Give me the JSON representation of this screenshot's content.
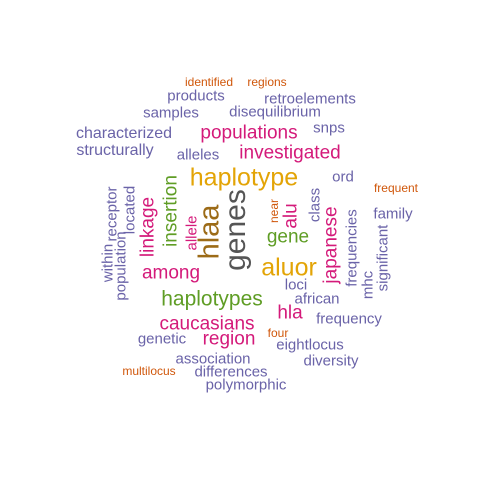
{
  "palette": {
    "purple": "#6a63a8",
    "magenta": "#d41a7a",
    "green": "#5f9d25",
    "gold": "#e3a406",
    "orange": "#d0570b",
    "gray": "#555555",
    "brown": "#9c6b17"
  },
  "words": [
    {
      "id": "identified",
      "text": "identified",
      "color": "orange"
    },
    {
      "id": "regions",
      "text": "regions",
      "color": "orange"
    },
    {
      "id": "products",
      "text": "products",
      "color": "purple"
    },
    {
      "id": "retroelements",
      "text": "retroelements",
      "color": "purple"
    },
    {
      "id": "samples",
      "text": "samples",
      "color": "purple"
    },
    {
      "id": "disequilibrium",
      "text": "disequilibrium",
      "color": "purple"
    },
    {
      "id": "snps",
      "text": "snps",
      "color": "purple"
    },
    {
      "id": "characterized",
      "text": "characterized",
      "color": "purple"
    },
    {
      "id": "populations",
      "text": "populations",
      "color": "magenta"
    },
    {
      "id": "structurally",
      "text": "structurally",
      "color": "purple"
    },
    {
      "id": "alleles",
      "text": "alleles",
      "color": "purple"
    },
    {
      "id": "investigated",
      "text": "investigated",
      "color": "magenta"
    },
    {
      "id": "haplotype",
      "text": "haplotype",
      "color": "gold"
    },
    {
      "id": "ord",
      "text": "ord",
      "color": "purple"
    },
    {
      "id": "frequent",
      "text": "frequent",
      "color": "orange"
    },
    {
      "id": "receptor",
      "text": "receptor",
      "color": "purple"
    },
    {
      "id": "located",
      "text": "located",
      "color": "purple"
    },
    {
      "id": "linkage",
      "text": "linkage",
      "color": "magenta"
    },
    {
      "id": "insertion",
      "text": "insertion",
      "color": "green"
    },
    {
      "id": "hlaa",
      "text": "hlaa",
      "color": "brown"
    },
    {
      "id": "genes",
      "text": "genes",
      "color": "gray"
    },
    {
      "id": "near",
      "text": "near",
      "color": "orange"
    },
    {
      "id": "alu",
      "text": "alu",
      "color": "magenta"
    },
    {
      "id": "class",
      "text": "class",
      "color": "purple"
    },
    {
      "id": "family",
      "text": "family",
      "color": "purple"
    },
    {
      "id": "allele",
      "text": "allele",
      "color": "magenta"
    },
    {
      "id": "gene",
      "text": "gene",
      "color": "green"
    },
    {
      "id": "japanese",
      "text": "japanese",
      "color": "magenta"
    },
    {
      "id": "frequencies",
      "text": "frequencies",
      "color": "purple"
    },
    {
      "id": "significant",
      "text": "significant",
      "color": "purple"
    },
    {
      "id": "within",
      "text": "within",
      "color": "purple"
    },
    {
      "id": "population",
      "text": "population",
      "color": "purple"
    },
    {
      "id": "among",
      "text": "among",
      "color": "magenta"
    },
    {
      "id": "aluor",
      "text": "aluor",
      "color": "gold"
    },
    {
      "id": "mhc",
      "text": "mhc",
      "color": "purple"
    },
    {
      "id": "loci",
      "text": "loci",
      "color": "purple"
    },
    {
      "id": "haplotypes",
      "text": "haplotypes",
      "color": "green"
    },
    {
      "id": "african",
      "text": "african",
      "color": "purple"
    },
    {
      "id": "hla",
      "text": "hla",
      "color": "magenta"
    },
    {
      "id": "frequency",
      "text": "frequency",
      "color": "purple"
    },
    {
      "id": "caucasians",
      "text": "caucasians",
      "color": "magenta"
    },
    {
      "id": "four",
      "text": "four",
      "color": "orange"
    },
    {
      "id": "genetic",
      "text": "genetic",
      "color": "purple"
    },
    {
      "id": "region",
      "text": "region",
      "color": "magenta"
    },
    {
      "id": "eightlocus",
      "text": "eightlocus",
      "color": "purple"
    },
    {
      "id": "association",
      "text": "association",
      "color": "purple"
    },
    {
      "id": "diversity",
      "text": "diversity",
      "color": "purple"
    },
    {
      "id": "multilocus",
      "text": "multilocus",
      "color": "orange"
    },
    {
      "id": "differences",
      "text": "differences",
      "color": "purple"
    },
    {
      "id": "polymorphic",
      "text": "polymorphic",
      "color": "purple"
    }
  ]
}
